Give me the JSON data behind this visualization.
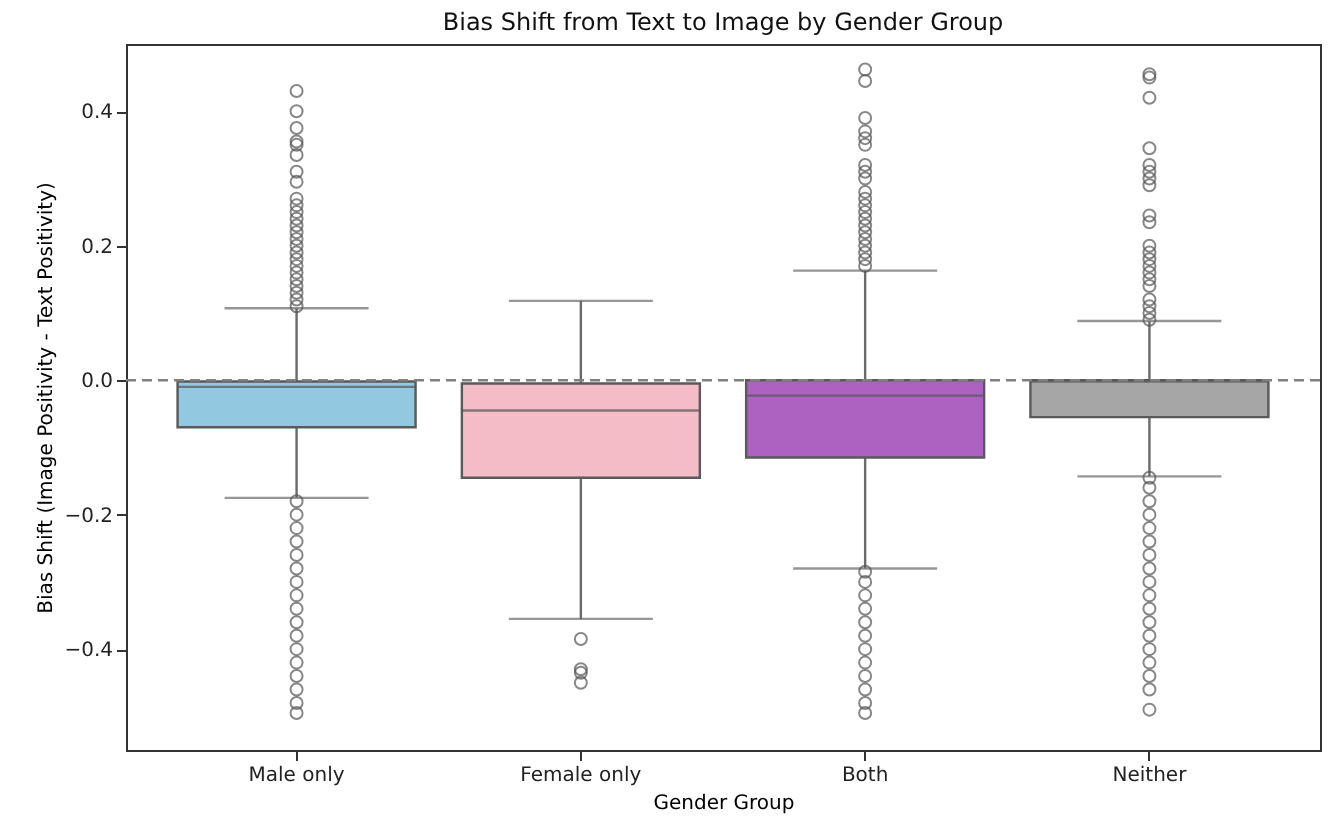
{
  "chart_data": {
    "type": "box",
    "title": "Bias Shift from Text to Image by Gender Group",
    "xlabel": "Gender Group",
    "ylabel": "Bias Shift (Image Positivity - Text Positivity)",
    "categories": [
      "Male only",
      "Female only",
      "Both",
      "Neither"
    ],
    "colors": [
      "#92c8e0",
      "#f4bcc6",
      "#ad62c2",
      "#a6a6a6"
    ],
    "boxes": [
      {
        "low": -0.175,
        "q1": -0.07,
        "median": -0.01,
        "q3": -0.002,
        "high": 0.107,
        "outliers": [
          0.43,
          0.4,
          0.375,
          0.355,
          0.35,
          0.335,
          0.31,
          0.295,
          0.27,
          0.26,
          0.25,
          0.24,
          0.23,
          0.22,
          0.21,
          0.2,
          0.19,
          0.18,
          0.17,
          0.16,
          0.15,
          0.14,
          0.13,
          0.12,
          0.11,
          -0.18,
          -0.2,
          -0.22,
          -0.24,
          -0.26,
          -0.28,
          -0.3,
          -0.32,
          -0.34,
          -0.36,
          -0.38,
          -0.4,
          -0.42,
          -0.44,
          -0.46,
          -0.48,
          -0.495
        ]
      },
      {
        "low": -0.355,
        "q1": -0.145,
        "median": -0.045,
        "q3": -0.005,
        "high": 0.118,
        "outliers": [
          -0.385,
          -0.43,
          -0.435,
          -0.45
        ]
      },
      {
        "low": -0.28,
        "q1": -0.115,
        "median": -0.023,
        "q3": 0.0,
        "high": 0.163,
        "outliers": [
          0.462,
          0.445,
          0.39,
          0.37,
          0.36,
          0.35,
          0.32,
          0.31,
          0.3,
          0.28,
          0.27,
          0.26,
          0.25,
          0.24,
          0.23,
          0.22,
          0.21,
          0.2,
          0.19,
          0.18,
          0.17,
          -0.285,
          -0.3,
          -0.32,
          -0.34,
          -0.36,
          -0.38,
          -0.4,
          -0.42,
          -0.44,
          -0.46,
          -0.48,
          -0.495
        ]
      },
      {
        "low": -0.143,
        "q1": -0.055,
        "median": -0.002,
        "q3": 0.0,
        "high": 0.088,
        "outliers": [
          0.455,
          0.45,
          0.42,
          0.345,
          0.32,
          0.31,
          0.3,
          0.29,
          0.245,
          0.235,
          0.2,
          0.19,
          0.18,
          0.17,
          0.16,
          0.15,
          0.14,
          0.12,
          0.11,
          0.1,
          0.09,
          -0.145,
          -0.16,
          -0.18,
          -0.2,
          -0.22,
          -0.24,
          -0.26,
          -0.28,
          -0.3,
          -0.32,
          -0.34,
          -0.36,
          -0.38,
          -0.4,
          -0.42,
          -0.44,
          -0.46,
          -0.49
        ]
      }
    ],
    "ylim": [
      -0.55,
      0.5
    ],
    "yticks": [
      {
        "value": -0.4,
        "label": "−0.4"
      },
      {
        "value": -0.2,
        "label": "−0.2"
      },
      {
        "value": 0,
        "label": "0.0"
      },
      {
        "value": 0.2,
        "label": "0.2"
      },
      {
        "value": 0.4,
        "label": "0.4"
      }
    ],
    "ref_lines": [
      {
        "axis": "y",
        "value": 0,
        "color": "#808080",
        "line_style": "dashed"
      }
    ]
  }
}
